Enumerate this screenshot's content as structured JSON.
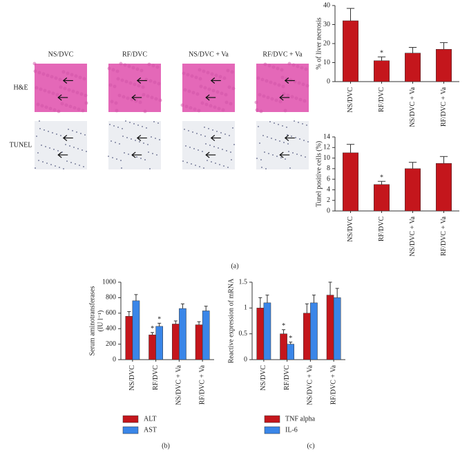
{
  "micrographs": {
    "columns": [
      "NS/DVC",
      "RF/DVC",
      "NS/DVC + Va",
      "RF/DVC + Va"
    ],
    "rows": [
      "H&E",
      "TUNEL"
    ]
  },
  "panel_labels": [
    "(a)",
    "(b)",
    "(c)"
  ],
  "chart_data": [
    {
      "type": "bar",
      "ylabel": [
        "% of liver necrosis"
      ],
      "categories": [
        "NS/DVC",
        "RF/DVC",
        "NS/DVC + Va",
        "RF/DVC + Va"
      ],
      "series": [
        {
          "color": "#c4161c",
          "values": [
            32,
            11,
            15,
            17
          ],
          "errors": [
            6.5,
            2,
            3,
            3.5
          ],
          "significance": [
            null,
            "*",
            null,
            null
          ]
        }
      ],
      "ylim": [
        0,
        40
      ],
      "yticks": [
        0,
        10,
        20,
        30,
        40
      ]
    },
    {
      "type": "bar",
      "ylabel": [
        "Tunel positive cells (%)"
      ],
      "categories": [
        "NS/DVC",
        "RF/DVC",
        "NS/DVC + Va",
        "RF/DVC + Va"
      ],
      "series": [
        {
          "color": "#c4161c",
          "values": [
            11,
            5,
            8,
            9
          ],
          "errors": [
            1.6,
            0.6,
            1.2,
            1.3
          ],
          "significance": [
            null,
            "*",
            null,
            null
          ]
        }
      ],
      "ylim": [
        0,
        14
      ],
      "yticks": [
        0,
        2,
        4,
        6,
        8,
        10,
        12,
        14
      ]
    },
    {
      "type": "bar",
      "ylabel": [
        "Serum aminotransferases",
        "(IU l⁻¹)"
      ],
      "categories": [
        "NS/DVC",
        "RF/DVC",
        "NS/DVC + Va",
        "RF/DVC + Va"
      ],
      "series": [
        {
          "name": "ALT",
          "color": "#c4161c",
          "values": [
            560,
            320,
            460,
            450
          ],
          "errors": [
            60,
            30,
            40,
            40
          ],
          "significance": [
            null,
            "*",
            null,
            null
          ]
        },
        {
          "name": "AST",
          "color": "#3a86e8",
          "values": [
            760,
            430,
            660,
            630
          ],
          "errors": [
            80,
            40,
            60,
            60
          ],
          "significance": [
            null,
            "*",
            null,
            null
          ]
        }
      ],
      "ylim": [
        0,
        1000
      ],
      "yticks": [
        0,
        200,
        400,
        600,
        800,
        1000
      ]
    },
    {
      "type": "bar",
      "ylabel": [
        "Reactive expression of mRNA"
      ],
      "categories": [
        "NS/DVC",
        "RF/DVC",
        "NS/DVC + Va",
        "RF/DVC + Va"
      ],
      "series": [
        {
          "name": "TNF alpha",
          "color": "#c4161c",
          "values": [
            1.0,
            0.5,
            0.9,
            1.25
          ],
          "errors": [
            0.2,
            0.08,
            0.18,
            0.25
          ],
          "significance": [
            null,
            "*",
            null,
            null
          ]
        },
        {
          "name": "IL-6",
          "color": "#3a86e8",
          "values": [
            1.1,
            0.3,
            1.1,
            1.2
          ],
          "errors": [
            0.15,
            0.04,
            0.15,
            0.18
          ],
          "significance": [
            null,
            "*",
            null,
            null
          ]
        }
      ],
      "ylim": [
        0,
        1.5
      ],
      "yticks": [
        0,
        0.5,
        1,
        1.5
      ]
    }
  ]
}
